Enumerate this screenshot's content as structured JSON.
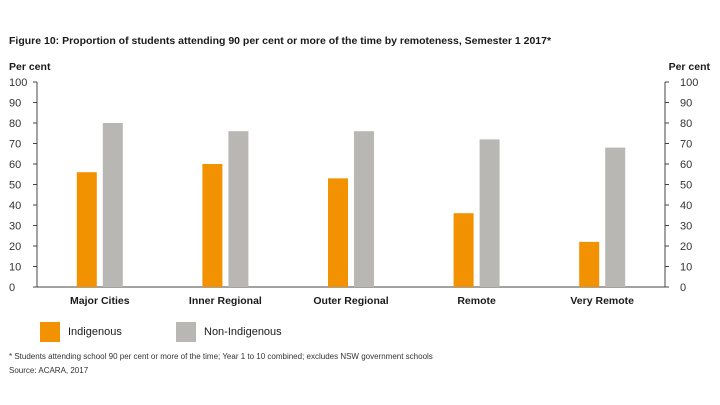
{
  "chart_data": {
    "type": "bar",
    "title": "Figure 10: Proportion of students attending 90 per cent or more of the time by remoteness, Semester 1 2017*",
    "ylabel_left": "Per cent",
    "ylabel_right": "Per cent",
    "ylim": [
      0,
      100
    ],
    "yticks": [
      0,
      10,
      20,
      30,
      40,
      50,
      60,
      70,
      80,
      90,
      100
    ],
    "categories": [
      "Major Cities",
      "Inner Regional",
      "Outer Regional",
      "Remote",
      "Very Remote"
    ],
    "series": [
      {
        "name": "Indigenous",
        "color": "#f39200",
        "values": [
          56,
          60,
          53,
          36,
          22
        ]
      },
      {
        "name": "Non-Indigenous",
        "color": "#b8b7b3",
        "values": [
          80,
          76,
          76,
          72,
          68
        ]
      }
    ],
    "legend": [
      "Indigenous",
      "Non-Indigenous"
    ],
    "footnote": "* Students attending school 90 per cent or more of the time; Year 1 to 10 combined; excludes NSW government schools",
    "source": "Source: ACARA, 2017"
  }
}
